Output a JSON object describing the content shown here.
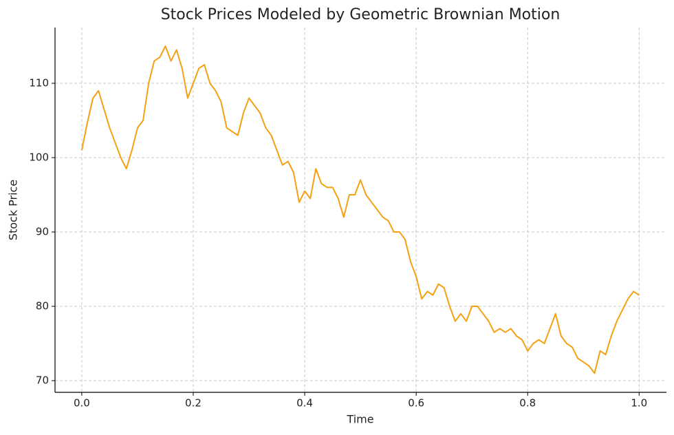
{
  "chart_data": {
    "type": "line",
    "title": "Stock Prices Modeled by Geometric Brownian Motion",
    "xlabel": "Time",
    "ylabel": "Stock Price",
    "x": [
      0,
      0.01,
      0.02,
      0.03,
      0.04,
      0.05,
      0.06,
      0.07,
      0.08,
      0.09,
      0.1,
      0.11,
      0.12,
      0.13,
      0.14,
      0.15,
      0.16,
      0.17,
      0.18,
      0.19,
      0.2,
      0.21,
      0.22,
      0.23,
      0.24,
      0.25,
      0.26,
      0.27,
      0.28,
      0.29,
      0.3,
      0.31,
      0.32,
      0.33,
      0.34,
      0.35,
      0.36,
      0.37,
      0.38,
      0.39,
      0.4,
      0.41,
      0.42,
      0.43,
      0.44,
      0.45,
      0.46,
      0.47,
      0.48,
      0.49,
      0.5,
      0.51,
      0.52,
      0.53,
      0.54,
      0.55,
      0.56,
      0.57,
      0.58,
      0.59,
      0.6,
      0.61,
      0.62,
      0.63,
      0.64,
      0.65,
      0.66,
      0.67,
      0.68,
      0.69,
      0.7,
      0.71,
      0.72,
      0.73,
      0.74,
      0.75,
      0.76,
      0.77,
      0.78,
      0.79,
      0.8,
      0.81,
      0.82,
      0.83,
      0.84,
      0.85,
      0.86,
      0.87,
      0.88,
      0.89,
      0.9,
      0.91,
      0.92,
      0.93,
      0.94,
      0.95,
      0.96,
      0.97,
      0.98,
      0.99,
      1
    ],
    "series": [
      {
        "name": "Stock Price",
        "color": "#f5a00f",
        "values": [
          101,
          104.7,
          108,
          109,
          106.5,
          104,
          102,
          100,
          98.5,
          101,
          104,
          105,
          110,
          113,
          113.5,
          115,
          113,
          114.5,
          112,
          108,
          110,
          112,
          112.5,
          110,
          109,
          107.5,
          104,
          103.5,
          103,
          106,
          108,
          107,
          106,
          104,
          103,
          101,
          99,
          99.5,
          98,
          94,
          95.5,
          94.5,
          98.5,
          96.5,
          96,
          96,
          94.5,
          92,
          95,
          95,
          97,
          95,
          94,
          93,
          92,
          91.5,
          90,
          90,
          89,
          86,
          84,
          81,
          82,
          81.5,
          83,
          82.5,
          80,
          78,
          79,
          78,
          80,
          80,
          79,
          78,
          76.5,
          77,
          76.5,
          77,
          76,
          75.5,
          74,
          75,
          75.5,
          75,
          77,
          79,
          76,
          75,
          74.5,
          73,
          72.5,
          72,
          71,
          74,
          73.5,
          76,
          78,
          79.5,
          81,
          82,
          81.5
        ]
      }
    ],
    "xlim": [
      -0.048,
      1.049
    ],
    "ylim": [
      68.43,
      117.5
    ],
    "xticks": [
      {
        "value": 0,
        "label": "0.0"
      },
      0.2,
      0.4,
      0.6,
      0.8,
      {
        "value": 1,
        "label": "1.0"
      }
    ],
    "yticks": [
      70,
      80,
      90,
      100,
      110
    ],
    "grid": true
  }
}
